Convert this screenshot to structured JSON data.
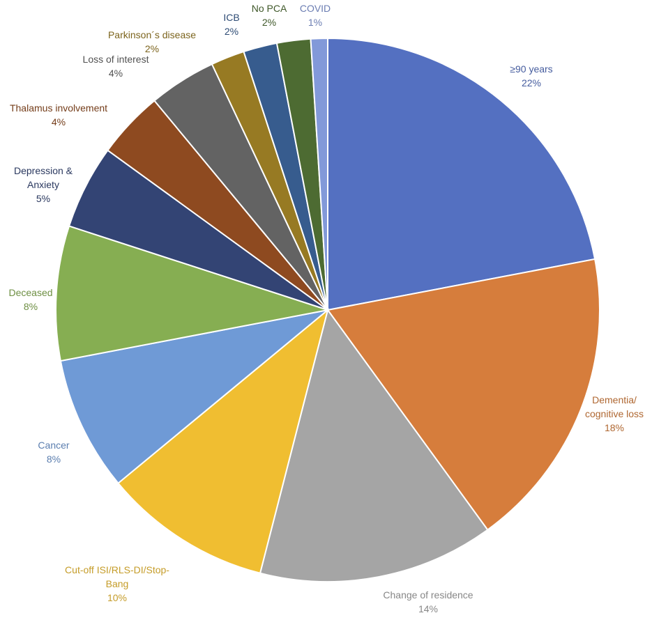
{
  "chart_data": {
    "type": "pie",
    "title": "",
    "legend": "none",
    "slices": [
      {
        "label": [
          "≥90 years"
        ],
        "pct": "22%",
        "value": 22,
        "color": "#5470C1"
      },
      {
        "label": [
          "Dementia/",
          "cognitive loss"
        ],
        "pct": "18%",
        "value": 18,
        "color": "#D67D3C"
      },
      {
        "label": [
          "Change of residence"
        ],
        "pct": "14%",
        "value": 14,
        "color": "#A5A5A5"
      },
      {
        "label": [
          "Cut-off ISI/RLS-DI/Stop-",
          "Bang"
        ],
        "pct": "10%",
        "value": 10,
        "color": "#F0BE31"
      },
      {
        "label": [
          "Cancer"
        ],
        "pct": "8%",
        "value": 8,
        "color": "#6F9AD6"
      },
      {
        "label": [
          "Deceased"
        ],
        "pct": "8%",
        "value": 8,
        "color": "#86AE52"
      },
      {
        "label": [
          "Depression &",
          "Anxiety"
        ],
        "pct": "5%",
        "value": 5,
        "color": "#334474"
      },
      {
        "label": [
          "Thalamus involvement"
        ],
        "pct": "4%",
        "value": 4,
        "color": "#8E4A20"
      },
      {
        "label": [
          "Loss of interest"
        ],
        "pct": "4%",
        "value": 4,
        "color": "#636363"
      },
      {
        "label": [
          "Parkinson´s disease"
        ],
        "pct": "2%",
        "value": 2,
        "color": "#977A23"
      },
      {
        "label": [
          "ICB"
        ],
        "pct": "2%",
        "value": 2,
        "color": "#375C8E"
      },
      {
        "label": [
          "No PCA"
        ],
        "pct": "2%",
        "value": 2,
        "color": "#4D6B32"
      },
      {
        "label": [
          "COVID"
        ],
        "pct": "1%",
        "value": 1,
        "color": "#8299D9"
      }
    ]
  }
}
